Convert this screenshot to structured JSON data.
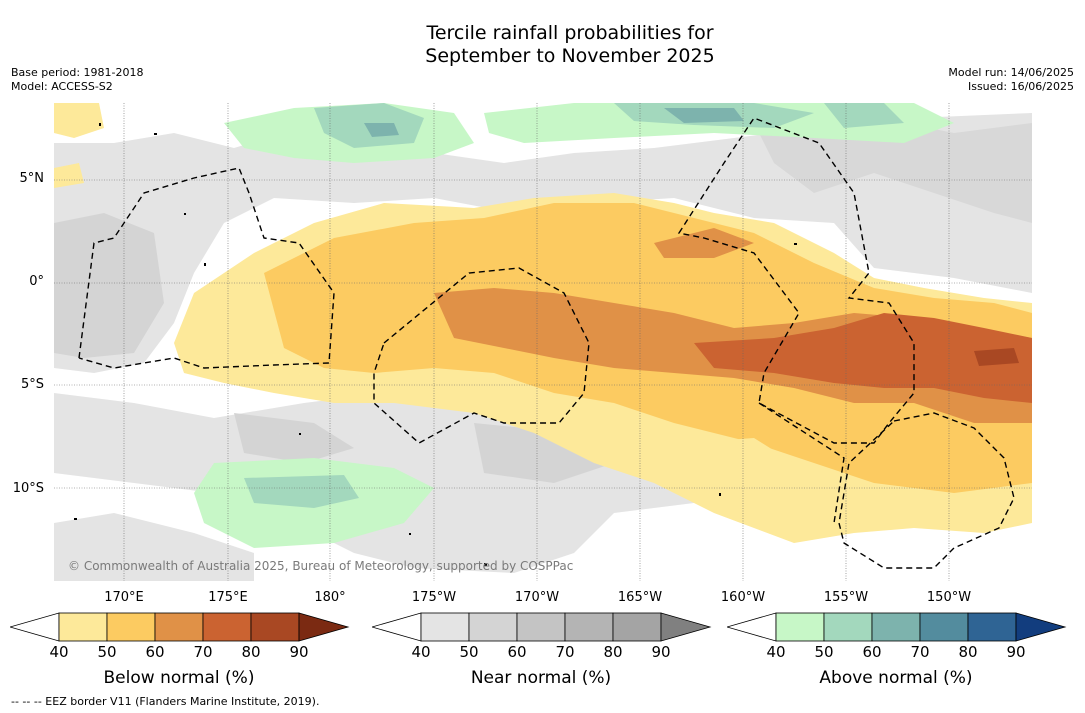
{
  "title": {
    "line1": "Tercile rainfall probabilities for",
    "line2": "September to November 2025"
  },
  "meta": {
    "base_period": "Base period: 1981-2018",
    "model": "Model: ACCESS-S2",
    "model_run": "Model run: 14/06/2025",
    "issued": "Issued: 16/06/2025"
  },
  "axes": {
    "lat_labels": [
      "5°N",
      "0°",
      "5°S",
      "10°S"
    ],
    "lon_labels": [
      "170°E",
      "175°E",
      "180°",
      "175°W",
      "170°W",
      "165°W",
      "160°W",
      "155°W",
      "150°W"
    ]
  },
  "copyright": "© Commonwealth of Australia 2025, Bureau of Meteorology, supported by COSPPac",
  "colorbars": [
    {
      "title": "Below normal (%)",
      "ticks": [
        "40",
        "50",
        "60",
        "70",
        "80",
        "90"
      ],
      "colors": [
        "#ffffff",
        "#fde99a",
        "#fccb61",
        "#e09147",
        "#cb6331",
        "#a94823",
        "#7b2a12"
      ]
    },
    {
      "title": "Near normal (%)",
      "ticks": [
        "40",
        "50",
        "60",
        "70",
        "80",
        "90"
      ],
      "colors": [
        "#ffffff",
        "#e4e4e4",
        "#d4d4d4",
        "#c4c4c4",
        "#b4b4b4",
        "#a4a4a4",
        "#808080"
      ]
    },
    {
      "title": "Above normal (%)",
      "ticks": [
        "40",
        "50",
        "60",
        "70",
        "80",
        "90"
      ],
      "colors": [
        "#ffffff",
        "#c7f7c7",
        "#a3d8bd",
        "#7db3ad",
        "#538c9e",
        "#2f6494",
        "#123d7e"
      ]
    }
  ],
  "footer": "-- -- -- EEZ border V11 (Flanders Marine Institute, 2019)."
}
